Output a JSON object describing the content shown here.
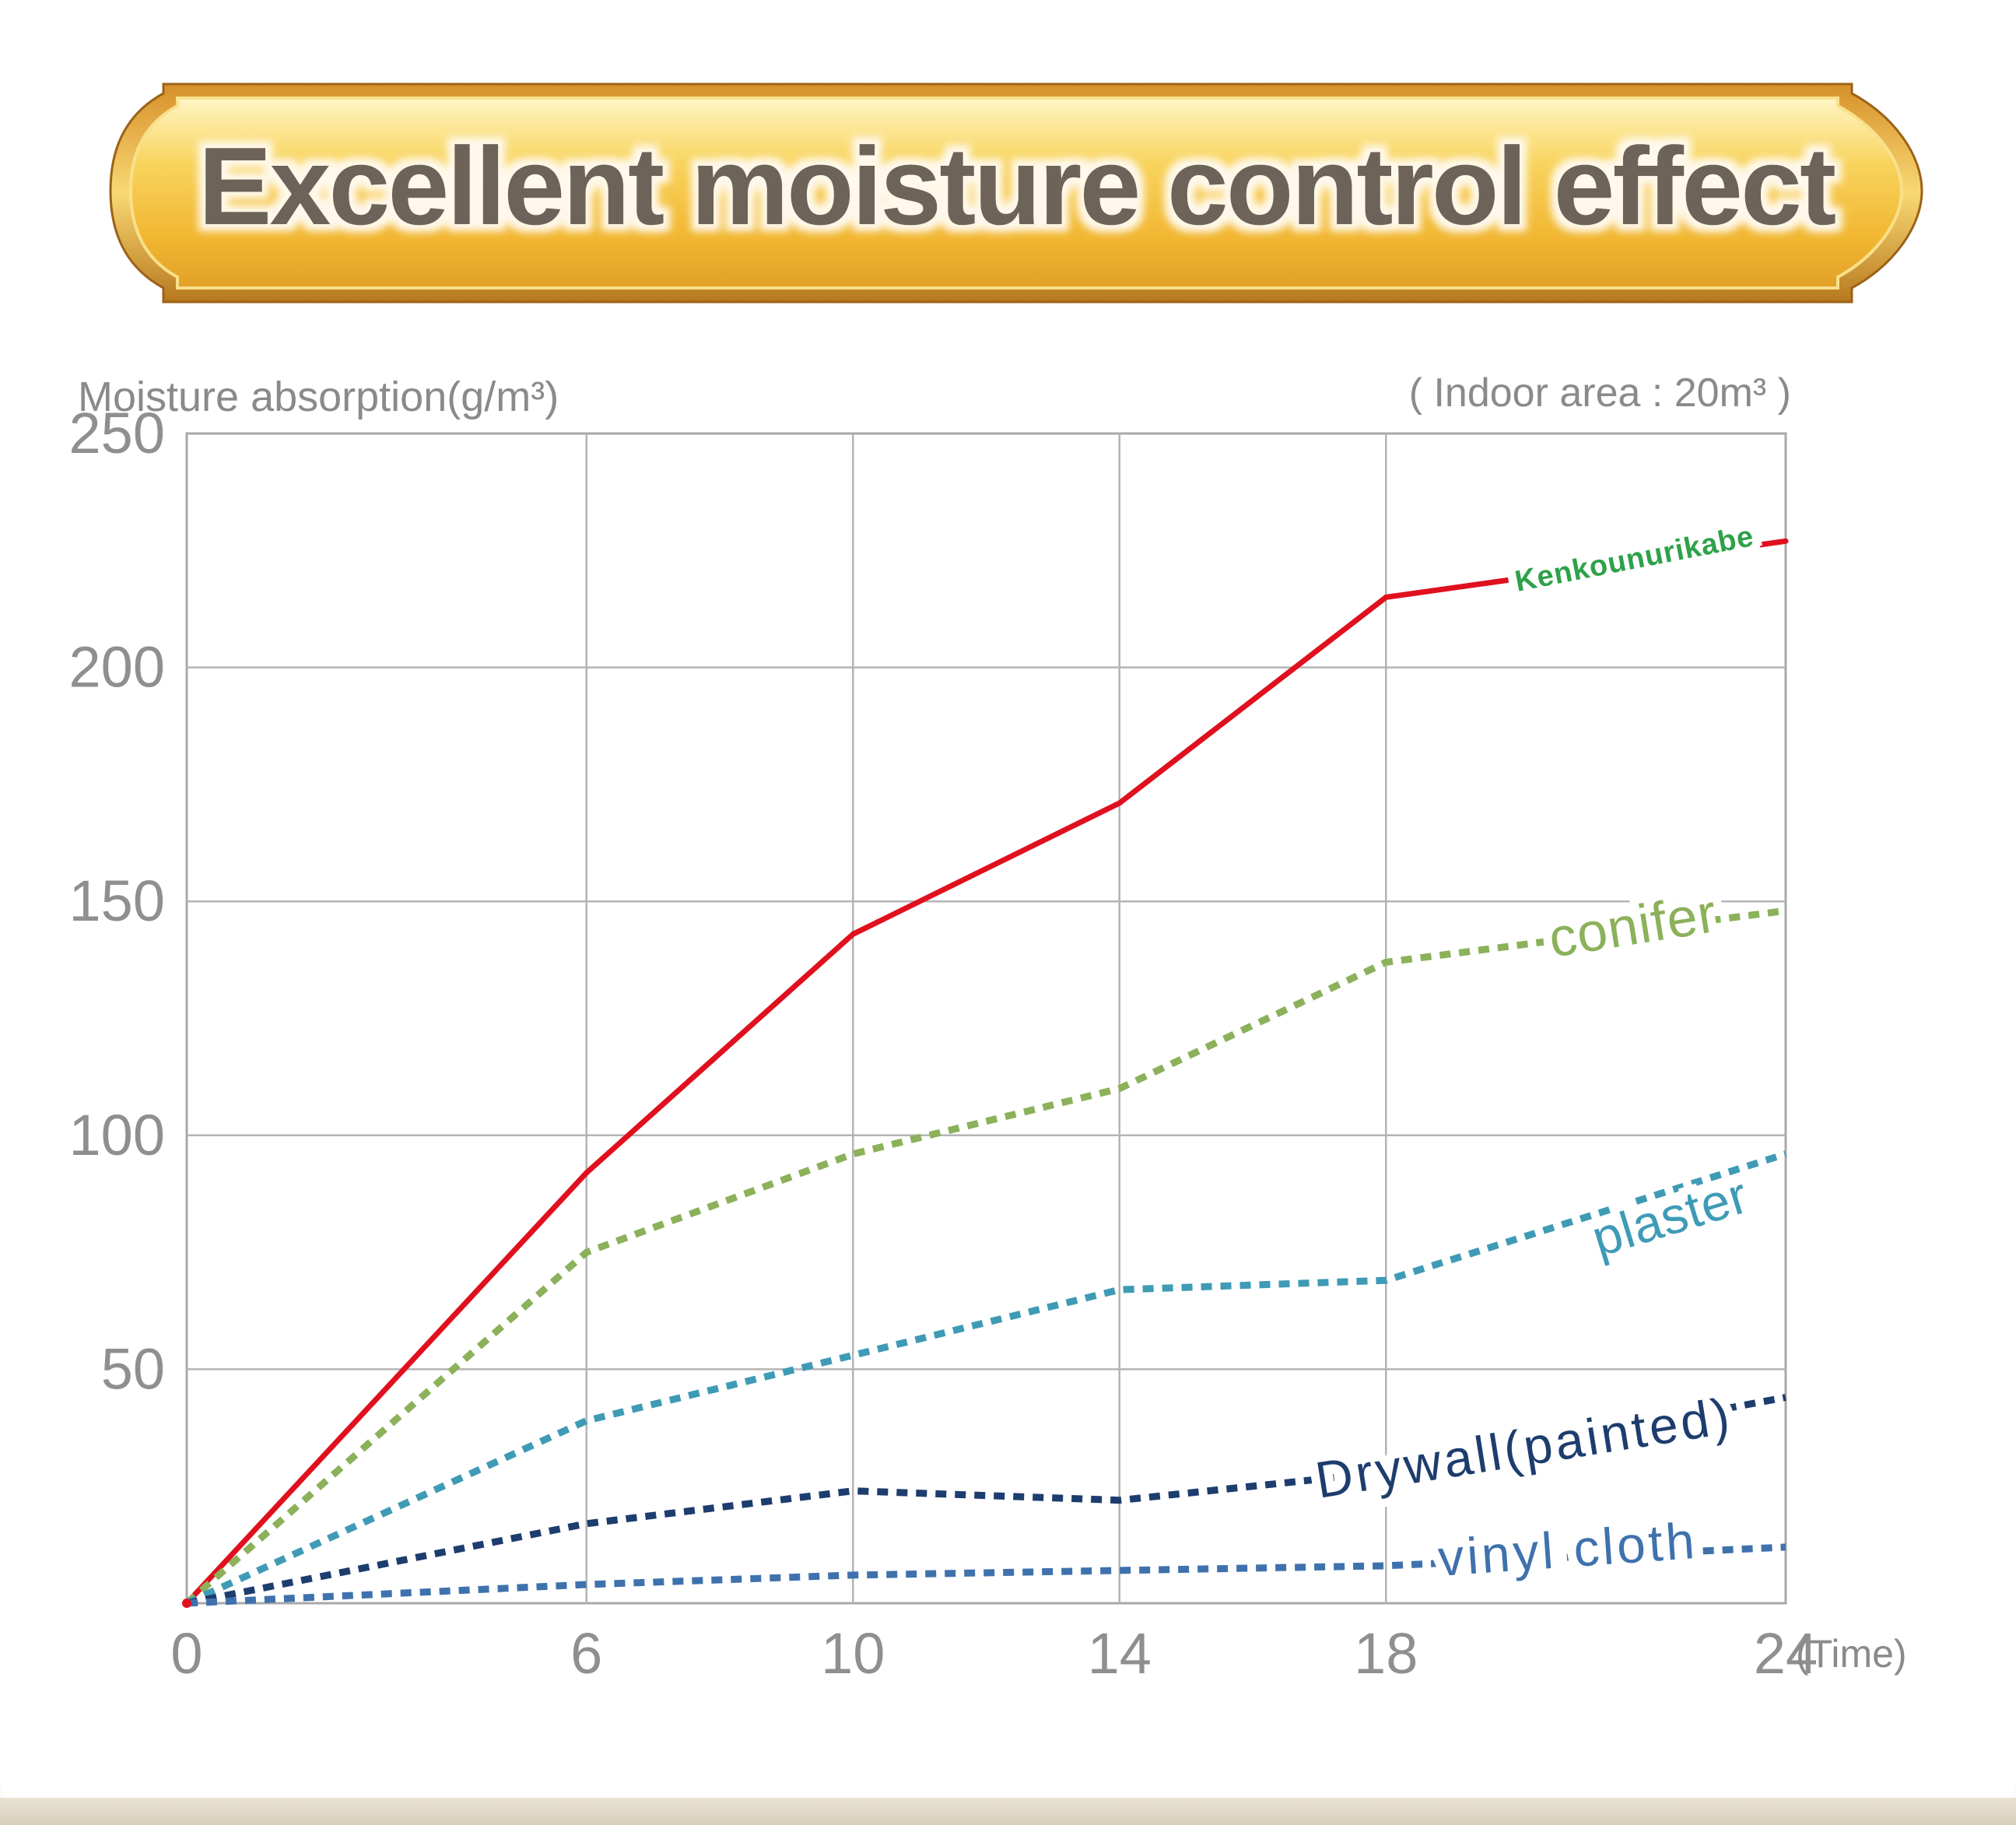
{
  "banner": {
    "title": "Excellent moisture control effect",
    "colors": {
      "gold_light": "#fff3b0",
      "gold_mid": "#f6c342",
      "gold_dark": "#b8791e",
      "title_text": "#6e6358"
    }
  },
  "chart_data": {
    "type": "line",
    "ylabel": "Moisture absorption(g/m³)",
    "xlabel": "(Time)",
    "note": "( Indoor area : 20m³ )",
    "x": [
      0,
      6,
      10,
      14,
      18,
      24
    ],
    "x_tick_labels": [
      "0",
      "6",
      "10",
      "14",
      "18",
      "24"
    ],
    "xlim": [
      0,
      24
    ],
    "y_tick_values": [
      50,
      100,
      150,
      200,
      250
    ],
    "y_tick_labels": [
      "50",
      "100",
      "150",
      "200",
      "250"
    ],
    "ylim": [
      0,
      250
    ],
    "grid": true,
    "series": [
      {
        "name": "Kenkounurikabe",
        "values": [
          0,
          92,
          143,
          171,
          215,
          227
        ],
        "color": "#e0101e",
        "label_color": "#2ea14a",
        "style": "solid"
      },
      {
        "name": "conifer",
        "values": [
          0,
          75,
          96,
          110,
          137,
          148
        ],
        "color": "#8bb15a",
        "label_color": "#8bb15a",
        "style": "dotted"
      },
      {
        "name": "plaster",
        "values": [
          0,
          39,
          53,
          67,
          69,
          96
        ],
        "color": "#3f9bb5",
        "label_color": "#3f9bb5",
        "style": "dotted"
      },
      {
        "name": "Drywall(painted)",
        "values": [
          0,
          17,
          24,
          22,
          28,
          44
        ],
        "color": "#1d3d6e",
        "label_color": "#1d3d6e",
        "style": "dotted"
      },
      {
        "name": "vinyl cloth",
        "values": [
          0,
          4,
          6,
          7,
          8,
          12
        ],
        "color": "#3f72ad",
        "label_color": "#3f72ad",
        "style": "dotted"
      }
    ]
  }
}
